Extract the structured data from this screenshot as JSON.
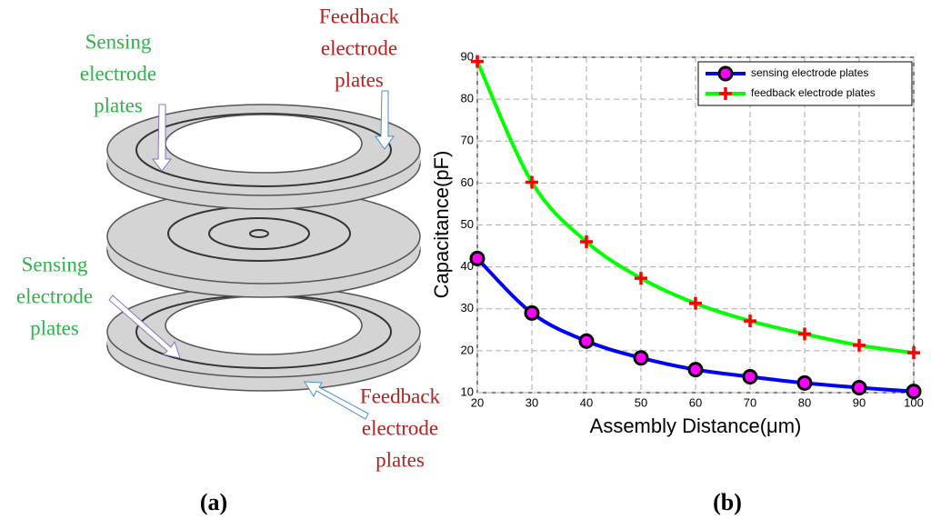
{
  "diagram": {
    "labels": [
      {
        "color": "#b22222",
        "lines": [
          "Feedback",
          "electrode",
          "plates"
        ]
      },
      {
        "color": "#2db34a",
        "lines": [
          "Sensing",
          "electrode",
          "plates"
        ]
      },
      {
        "color": "#2db34a",
        "lines": [
          "Sensing",
          "electrode",
          "plates"
        ]
      },
      {
        "color": "#b22222",
        "lines": [
          "Feedback",
          "electrode",
          "plates"
        ]
      }
    ],
    "caption": "(a)"
  },
  "chart_caption": "(b)",
  "chart_data": {
    "type": "line",
    "xlabel": "Assembly Distance(μm)",
    "ylabel": "Capacitance(pF)",
    "x": [
      20,
      30,
      40,
      50,
      60,
      70,
      80,
      90,
      100
    ],
    "series": [
      {
        "name": "sensing electrode plates",
        "color": "#0000ff",
        "marker": "circle",
        "values": [
          42,
          29,
          22.3,
          18.3,
          15.5,
          13.8,
          12.3,
          11.2,
          10.3
        ]
      },
      {
        "name": "feedback electrode plates",
        "color": "#00ff00",
        "marker": "plus",
        "values": [
          89,
          60.2,
          46,
          37.3,
          31.3,
          27.1,
          24,
          21.3,
          19.5
        ]
      }
    ],
    "xlim": [
      20,
      100
    ],
    "xticks": [
      20,
      30,
      40,
      50,
      60,
      70,
      80,
      90,
      100
    ],
    "ylim": [
      10,
      90
    ],
    "yticks": [
      10,
      20,
      30,
      40,
      50,
      60,
      70,
      80,
      90
    ],
    "grid": true,
    "legend": "upper right"
  }
}
